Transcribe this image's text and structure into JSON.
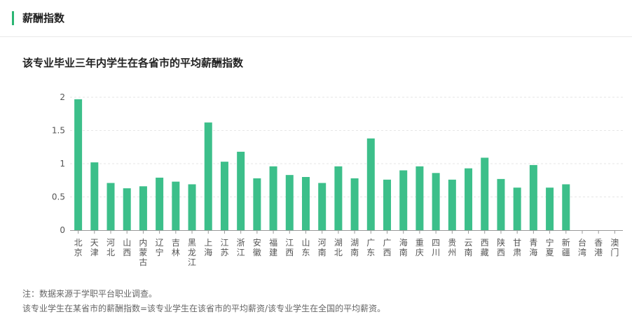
{
  "header": {
    "title": "薪酬指数"
  },
  "chart_data": {
    "type": "bar",
    "title": "该专业毕业三年内学生在各省市的平均薪酬指数",
    "xlabel": "",
    "ylabel": "",
    "ylim": [
      0,
      2
    ],
    "yticks": [
      "0",
      "0.5",
      "1",
      "1.5",
      "2"
    ],
    "grid": true,
    "bar_color": "#3cbf8a",
    "categories": [
      "北京",
      "天津",
      "河北",
      "山西",
      "内蒙古",
      "辽宁",
      "吉林",
      "黑龙江",
      "上海",
      "江苏",
      "浙江",
      "安徽",
      "福建",
      "江西",
      "山东",
      "河南",
      "湖北",
      "湖南",
      "广东",
      "广西",
      "海南",
      "重庆",
      "四川",
      "贵州",
      "云南",
      "西藏",
      "陕西",
      "甘肃",
      "青海",
      "宁夏",
      "新疆",
      "台湾",
      "香港",
      "澳门"
    ],
    "values": [
      1.97,
      1.02,
      0.71,
      0.63,
      0.66,
      0.79,
      0.73,
      0.69,
      1.62,
      1.03,
      1.18,
      0.78,
      0.96,
      0.83,
      0.8,
      0.71,
      0.96,
      0.78,
      1.38,
      0.76,
      0.9,
      0.96,
      0.86,
      0.76,
      0.93,
      1.09,
      0.77,
      0.64,
      0.98,
      0.64,
      0.69,
      0,
      0,
      0
    ]
  },
  "notes": {
    "line1": "注：数据来源于学职平台职业调查。",
    "line2": "该专业学生在某省市的薪酬指数=该专业学生在该省市的平均薪资/该专业学生在全国的平均薪资。"
  }
}
